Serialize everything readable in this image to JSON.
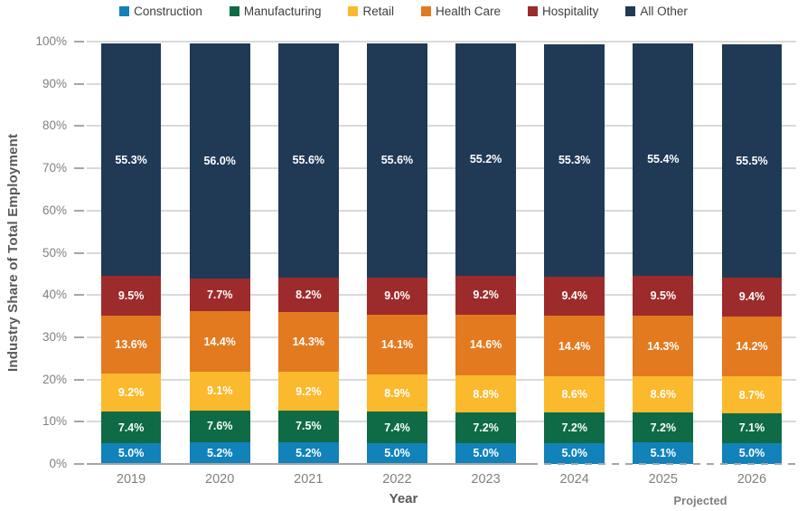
{
  "chart_data": {
    "type": "bar",
    "stacked": true,
    "categories": [
      "2019",
      "2020",
      "2021",
      "2022",
      "2023",
      "2024",
      "2025",
      "2026"
    ],
    "series": [
      {
        "name": "Construction",
        "color": "#1182BA",
        "values": [
          5.0,
          5.2,
          5.2,
          5.0,
          5.0,
          5.0,
          5.1,
          5.0
        ]
      },
      {
        "name": "Manufacturing",
        "color": "#0E6B45",
        "values": [
          7.4,
          7.6,
          7.5,
          7.4,
          7.2,
          7.2,
          7.2,
          7.1
        ]
      },
      {
        "name": "Retail",
        "color": "#FBB92D",
        "values": [
          9.2,
          9.1,
          9.2,
          8.9,
          8.8,
          8.6,
          8.6,
          8.7
        ]
      },
      {
        "name": "Health Care",
        "color": "#E37A20",
        "values": [
          13.6,
          14.4,
          14.3,
          14.1,
          14.6,
          14.4,
          14.3,
          14.2
        ]
      },
      {
        "name": "Hospitality",
        "color": "#9E2B2B",
        "values": [
          9.5,
          7.7,
          8.2,
          9.0,
          9.2,
          9.4,
          9.5,
          9.4
        ]
      },
      {
        "name": "All Other",
        "color": "#203A56",
        "values": [
          55.3,
          56.0,
          55.6,
          55.6,
          55.2,
          55.3,
          55.4,
          55.5
        ]
      }
    ],
    "xlabel": "Year",
    "ylabel": "Industry Share of Total Employment",
    "ylim": [
      0,
      100
    ],
    "y_tick_step": 10,
    "y_tick_suffix": "%",
    "value_suffix": "%",
    "legend_position": "top",
    "grid": true,
    "projected_note": "Projected",
    "projected_categories": [
      "2024",
      "2025",
      "2026"
    ],
    "colors": {
      "gridline": "#D9D9D9",
      "axis": "#A6A6A6",
      "tick_label": "#808080",
      "axis_title": "#595959",
      "bar_label": "#FFFFFF"
    }
  }
}
